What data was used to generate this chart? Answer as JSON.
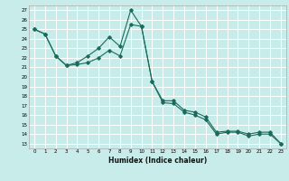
{
  "xlabel": "Humidex (Indice chaleur)",
  "bg_color": "#c8ece9",
  "grid_color": "#ffffff",
  "line_color": "#1a6b5a",
  "xlim": [
    -0.5,
    23.5
  ],
  "ylim": [
    12.5,
    27.5
  ],
  "xticks": [
    0,
    1,
    2,
    3,
    4,
    5,
    6,
    7,
    8,
    9,
    10,
    11,
    12,
    13,
    14,
    15,
    16,
    17,
    18,
    19,
    20,
    21,
    22,
    23
  ],
  "yticks": [
    13,
    14,
    15,
    16,
    17,
    18,
    19,
    20,
    21,
    22,
    23,
    24,
    25,
    26,
    27
  ],
  "line1_x": [
    0,
    1,
    2,
    3,
    4,
    5,
    6,
    7,
    8,
    9,
    10,
    11,
    12,
    13,
    14,
    15,
    16,
    17,
    18,
    19,
    20,
    21,
    22,
    23
  ],
  "line1_y": [
    25.0,
    24.5,
    22.2,
    21.2,
    21.5,
    22.2,
    23.0,
    24.2,
    23.2,
    27.0,
    25.3,
    19.5,
    17.5,
    17.5,
    16.5,
    16.3,
    15.8,
    14.2,
    14.3,
    14.3,
    14.0,
    14.2,
    14.2,
    13.0
  ],
  "line2_x": [
    0,
    1,
    2,
    3,
    4,
    5,
    6,
    7,
    8,
    9,
    10,
    11,
    12,
    13,
    14,
    15,
    16,
    17,
    18,
    19,
    20,
    21,
    22,
    23
  ],
  "line2_y": [
    25.0,
    24.5,
    22.2,
    21.2,
    21.3,
    21.5,
    22.0,
    22.8,
    22.2,
    25.5,
    25.3,
    19.5,
    17.3,
    17.2,
    16.3,
    16.0,
    15.5,
    14.0,
    14.2,
    14.2,
    13.8,
    14.0,
    14.0,
    13.0
  ]
}
